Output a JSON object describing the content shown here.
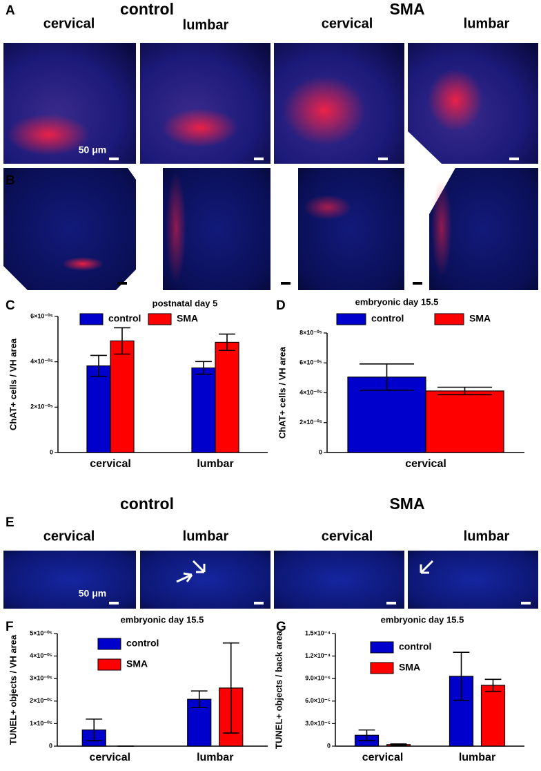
{
  "figure": {
    "panel_labels": [
      "A",
      "B",
      "C",
      "D",
      "E",
      "F",
      "G"
    ],
    "row_a": {
      "groups": [
        "control",
        "SMA"
      ],
      "columns": [
        "cervical",
        "lumbar",
        "cervical",
        "lumbar"
      ],
      "scale_label": "50 μm"
    },
    "row_e": {
      "groups": [
        "control",
        "SMA"
      ],
      "columns": [
        "cervical",
        "lumbar",
        "cervical",
        "lumbar"
      ],
      "scale_label": "50 μm"
    }
  },
  "chart_data": [
    {
      "type": "bar",
      "title": "postnatal day 5",
      "ylabel": "ChAT+ cells / VH area",
      "categories": [
        "cervical",
        "lumbar"
      ],
      "series": [
        {
          "name": "control",
          "color": "#0000cc",
          "values": [
            3.82e-05,
            3.73e-05
          ],
          "errors": [
            4.6e-06,
            2.8e-06
          ]
        },
        {
          "name": "SMA",
          "color": "#ff0000",
          "values": [
            4.92e-05,
            4.86e-05
          ],
          "errors": [
            5.8e-06,
            3.6e-06
          ]
        }
      ],
      "ylim": [
        0,
        6e-05
      ],
      "yticks": [
        0,
        {
          "value": 2e-05,
          "label": "2×10⁻⁰⁵"
        },
        {
          "value": 4e-05,
          "label": "4×10⁻⁰⁵"
        },
        {
          "value": 6e-05,
          "label": "6×10⁻⁰⁵"
        }
      ],
      "legend": "top"
    },
    {
      "type": "bar",
      "title": "embryonic day 15.5",
      "ylabel": "ChAT+ cells / VH area",
      "categories": [
        "cervical"
      ],
      "series": [
        {
          "name": "control",
          "color": "#0000cc",
          "values": [
            5.05e-05
          ],
          "errors": [
            8.8e-06
          ]
        },
        {
          "name": "SMA",
          "color": "#ff0000",
          "values": [
            4.12e-05
          ],
          "errors": [
            2.5e-06
          ]
        }
      ],
      "ylim": [
        0,
        8e-05
      ],
      "yticks": [
        0,
        {
          "value": 2e-05,
          "label": "2×10⁻⁰⁵"
        },
        {
          "value": 4e-05,
          "label": "4×10⁻⁰⁵"
        },
        {
          "value": 6e-05,
          "label": "6×10⁻⁰⁵"
        },
        {
          "value": 8e-05,
          "label": "8×10⁻⁰⁵"
        }
      ],
      "legend": "top"
    },
    {
      "type": "bar",
      "title": "embryonic day 15.5",
      "ylabel": "TUNEL+ objects / VH area",
      "categories": [
        "cervical",
        "lumbar"
      ],
      "series": [
        {
          "name": "control",
          "color": "#0000cc",
          "values": [
            7.2e-06,
            2.08e-05
          ],
          "errors": [
            4.8e-06,
            3.7e-06
          ]
        },
        {
          "name": "SMA",
          "color": "#ff0000",
          "values": [
            0,
            2.58e-05
          ],
          "errors": [
            0,
            2e-05
          ]
        }
      ],
      "ylim": [
        0,
        5e-05
      ],
      "yticks": [
        0,
        {
          "value": 1e-05,
          "label": "1×10⁻⁰⁵"
        },
        {
          "value": 2e-05,
          "label": "2×10⁻⁰⁵"
        },
        {
          "value": 3e-05,
          "label": "3×10⁻⁰⁵"
        },
        {
          "value": 4e-05,
          "label": "4×10⁻⁰⁵"
        },
        {
          "value": 5e-05,
          "label": "5×10⁻⁰⁵"
        }
      ],
      "legend": "upper left"
    },
    {
      "type": "bar",
      "title": "embryonic day 15.5",
      "ylabel": "TUNEL+ objects / back area",
      "categories": [
        "cervical",
        "lumbar"
      ],
      "series": [
        {
          "name": "control",
          "color": "#0000cc",
          "values": [
            1.45e-05,
            9.3e-05
          ],
          "errors": [
            7e-06,
            3.2e-05
          ]
        },
        {
          "name": "SMA",
          "color": "#ff0000",
          "values": [
            2e-06,
            8.1e-05
          ],
          "errors": [
            1e-06,
            8e-06
          ]
        }
      ],
      "ylim": [
        0,
        0.00015
      ],
      "yticks": [
        0,
        {
          "value": 3e-05,
          "label": "3.0×10⁻⁵"
        },
        {
          "value": 6e-05,
          "label": "6.0×10⁻⁵"
        },
        {
          "value": 9e-05,
          "label": "9.0×10⁻⁵"
        },
        {
          "value": 0.00012,
          "label": "1.2×10⁻⁴"
        },
        {
          "value": 0.00015,
          "label": "1.5×10⁻⁴"
        }
      ],
      "legend": "upper left"
    }
  ]
}
